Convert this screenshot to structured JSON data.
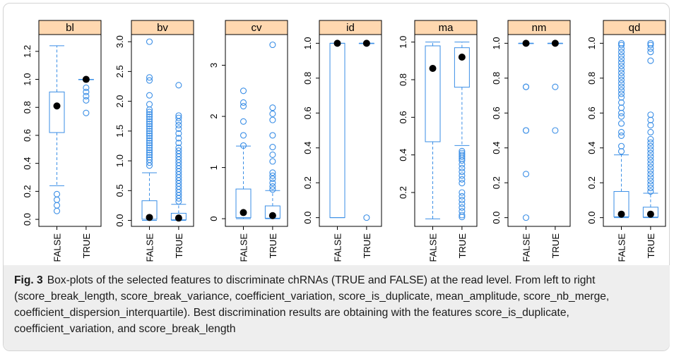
{
  "colors": {
    "box": "#3a8ee6",
    "strip": "#ffd8b0",
    "mean": "#000000",
    "axis": "#000000"
  },
  "chart_data": {
    "type": "box",
    "categories": [
      "FALSE",
      "TRUE"
    ],
    "panels": [
      {
        "name": "bl",
        "ylim": [
          -0.05,
          1.32
        ],
        "yticks": [
          "0.0",
          "0.2",
          "0.4",
          "0.6",
          "0.8",
          "1.0",
          "1.2"
        ],
        "groups": [
          {
            "label": "FALSE",
            "lower_whisker": 0.24,
            "q1": 0.62,
            "median": 0.8,
            "q3": 0.91,
            "upper_whisker": 1.24,
            "mean": 0.81,
            "outliers": [
              0.18,
              0.14,
              0.1,
              0.06
            ]
          },
          {
            "label": "TRUE",
            "lower_whisker": 1.0,
            "q1": 1.0,
            "median": 1.0,
            "q3": 1.0,
            "upper_whisker": 1.0,
            "mean": 1.0,
            "outliers": [
              0.94,
              0.91,
              0.88,
              0.85,
              0.76
            ]
          }
        ]
      },
      {
        "name": "bv",
        "ylim": [
          -0.1,
          3.12
        ],
        "yticks": [
          "0.0",
          "0.5",
          "1.0",
          "1.5",
          "2.0",
          "2.5",
          "3.0"
        ],
        "groups": [
          {
            "label": "FALSE",
            "lower_whisker": 0.0,
            "q1": 0.02,
            "median": 0.05,
            "q3": 0.33,
            "upper_whisker": 0.8,
            "mean": 0.05,
            "outliers": [
              0.92,
              0.97,
              1.02,
              1.06,
              1.1,
              1.14,
              1.18,
              1.22,
              1.26,
              1.3,
              1.34,
              1.38,
              1.42,
              1.46,
              1.5,
              1.54,
              1.58,
              1.62,
              1.66,
              1.7,
              1.74,
              1.78,
              1.82,
              1.86,
              1.95,
              2.1,
              2.35,
              2.4,
              3.0
            ]
          },
          {
            "label": "TRUE",
            "lower_whisker": 0.0,
            "q1": 0.01,
            "median": 0.03,
            "q3": 0.12,
            "upper_whisker": 0.27,
            "mean": 0.04,
            "outliers": [
              0.32,
              0.37,
              0.42,
              0.47,
              0.52,
              0.57,
              0.62,
              0.67,
              0.72,
              0.77,
              0.82,
              0.87,
              0.92,
              0.97,
              1.02,
              1.07,
              1.12,
              1.17,
              1.22,
              1.3,
              1.38,
              1.46,
              1.54,
              1.6,
              1.66,
              1.72,
              1.76,
              2.27
            ]
          }
        ]
      },
      {
        "name": "cv",
        "ylim": [
          -0.15,
          3.6
        ],
        "yticks": [
          "0",
          "1",
          "2",
          "3"
        ],
        "groups": [
          {
            "label": "FALSE",
            "lower_whisker": 0.0,
            "q1": 0.02,
            "median": 0.05,
            "q3": 0.58,
            "upper_whisker": 1.42,
            "mean": 0.12,
            "outliers": [
              1.43,
              1.63,
              1.9,
              2.2,
              2.27,
              2.5
            ]
          },
          {
            "label": "TRUE",
            "lower_whisker": 0.0,
            "q1": 0.01,
            "median": 0.03,
            "q3": 0.25,
            "upper_whisker": 0.55,
            "mean": 0.06,
            "outliers": [
              0.57,
              0.63,
              0.7,
              0.78,
              0.84,
              0.9,
              1.12,
              1.25,
              1.4,
              1.63,
              1.93,
              2.05,
              2.17,
              3.4
            ]
          }
        ]
      },
      {
        "name": "id",
        "ylim": [
          -0.05,
          1.05
        ],
        "yticks": [
          "0.0",
          "0.2",
          "0.4",
          "0.6",
          "0.8",
          "1.0"
        ],
        "groups": [
          {
            "label": "FALSE",
            "lower_whisker": 0.0,
            "q1": 0.0,
            "median": 1.0,
            "q3": 1.0,
            "upper_whisker": 1.0,
            "mean": 1.0,
            "outliers": []
          },
          {
            "label": "TRUE",
            "lower_whisker": 1.0,
            "q1": 1.0,
            "median": 1.0,
            "q3": 1.0,
            "upper_whisker": 1.0,
            "mean": 1.0,
            "outliers": [
              0.0
            ]
          }
        ]
      },
      {
        "name": "ma",
        "ylim": [
          0.02,
          1.04
        ],
        "yticks": [
          "0.2",
          "0.4",
          "0.6",
          "0.8",
          "1.0"
        ],
        "groups": [
          {
            "label": "FALSE",
            "lower_whisker": 0.06,
            "q1": 0.47,
            "median": 0.92,
            "q3": 0.98,
            "upper_whisker": 1.0,
            "mean": 0.86,
            "outliers": []
          },
          {
            "label": "TRUE",
            "lower_whisker": 0.45,
            "q1": 0.76,
            "median": 0.94,
            "q3": 0.97,
            "upper_whisker": 1.0,
            "mean": 0.92,
            "outliers": [
              0.42,
              0.41,
              0.4,
              0.39,
              0.38,
              0.37,
              0.35,
              0.33,
              0.31,
              0.29,
              0.27,
              0.25,
              0.2,
              0.18,
              0.16,
              0.14,
              0.12,
              0.1,
              0.08,
              0.07
            ]
          }
        ]
      },
      {
        "name": "nm",
        "ylim": [
          -0.05,
          1.05
        ],
        "yticks": [
          "0.0",
          "0.2",
          "0.4",
          "0.6",
          "0.8",
          "1.0"
        ],
        "groups": [
          {
            "label": "FALSE",
            "lower_whisker": 1.0,
            "q1": 1.0,
            "median": 1.0,
            "q3": 1.0,
            "upper_whisker": 1.0,
            "mean": 1.0,
            "outliers": [
              0.75,
              0.75,
              0.5,
              0.5,
              0.25,
              0.0
            ]
          },
          {
            "label": "TRUE",
            "lower_whisker": 1.0,
            "q1": 1.0,
            "median": 1.0,
            "q3": 1.0,
            "upper_whisker": 1.0,
            "mean": 1.0,
            "outliers": [
              0.75,
              0.5
            ]
          }
        ]
      },
      {
        "name": "qd",
        "ylim": [
          -0.05,
          1.05
        ],
        "yticks": [
          "0.0",
          "0.2",
          "0.4",
          "0.6",
          "0.8",
          "1.0"
        ],
        "groups": [
          {
            "label": "FALSE",
            "lower_whisker": 0.0,
            "q1": 0.005,
            "median": 0.02,
            "q3": 0.15,
            "upper_whisker": 0.36,
            "mean": 0.02,
            "outliers": [
              0.38,
              0.41,
              0.47,
              0.49,
              0.54,
              0.58,
              0.6,
              0.63,
              0.66,
              0.69,
              0.71,
              0.73,
              0.75,
              0.77,
              0.79,
              0.81,
              0.83,
              0.85,
              0.87,
              0.89,
              0.91,
              0.93,
              0.95,
              0.97,
              0.99,
              1.0
            ]
          },
          {
            "label": "TRUE",
            "lower_whisker": 0.0,
            "q1": 0.003,
            "median": 0.01,
            "q3": 0.06,
            "upper_whisker": 0.14,
            "mean": 0.02,
            "outliers": [
              0.15,
              0.17,
              0.19,
              0.21,
              0.23,
              0.25,
              0.27,
              0.29,
              0.31,
              0.33,
              0.35,
              0.37,
              0.39,
              0.41,
              0.43,
              0.45,
              0.49,
              0.53,
              0.56,
              0.59,
              0.9,
              0.95,
              0.97,
              0.99,
              1.0
            ]
          }
        ]
      }
    ]
  },
  "caption": {
    "label": "Fig. 3",
    "text": "Box-plots of the selected features to discriminate chRNAs (TRUE and FALSE) at the read level. From left to right (score_break_length, score_break_variance, coefficient_variation, score_is_duplicate, mean_amplitude, score_nb_merge, coefficient_dispersion_interquartile). Best discrimination results are obtaining with the features score_is_duplicate, coefficient_variation, and score_break_length"
  }
}
